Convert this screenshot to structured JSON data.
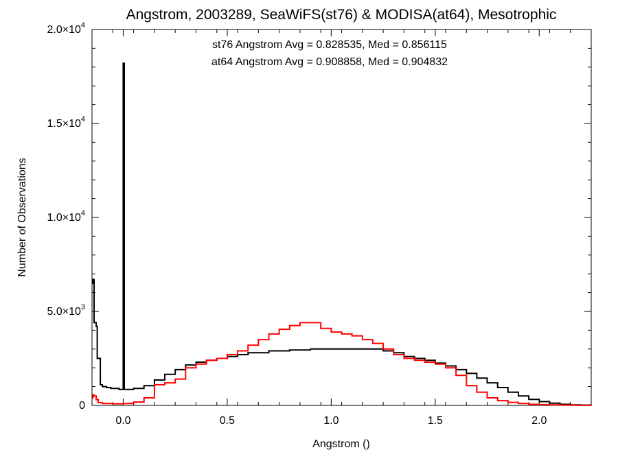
{
  "chart_data": {
    "type": "histogram",
    "title": "Angstrom, 2003289, SeaWiFS(st76) & MODISA(at64), Mesotrophic",
    "xlabel": "Angstrom ()",
    "ylabel": "Number of Observations",
    "xlim": [
      -0.15,
      2.25
    ],
    "ylim": [
      0,
      20000
    ],
    "grid": false,
    "x_ticks": [
      {
        "value": 0.0,
        "label": "0.0"
      },
      {
        "value": 0.5,
        "label": "0.5"
      },
      {
        "value": 1.0,
        "label": "1.0"
      },
      {
        "value": 1.5,
        "label": "1.5"
      },
      {
        "value": 2.0,
        "label": "2.0"
      }
    ],
    "y_ticks": [
      {
        "value": 0,
        "mantissa": "0",
        "exp": ""
      },
      {
        "value": 5000,
        "mantissa": "5.0×10",
        "exp": "3"
      },
      {
        "value": 10000,
        "mantissa": "1.0×10",
        "exp": "4"
      },
      {
        "value": 15000,
        "mantissa": "1.5×10",
        "exp": "4"
      },
      {
        "value": 20000,
        "mantissa": "2.0×10",
        "exp": "4"
      }
    ],
    "series": [
      {
        "name": "st76",
        "color": "#000000",
        "annotation": "st76 Angstrom Avg = 0.828535, Med = 0.856115",
        "points": [
          [
            -0.15,
            6500
          ],
          [
            -0.145,
            6700
          ],
          [
            -0.14,
            4400
          ],
          [
            -0.135,
            4400
          ],
          [
            -0.13,
            4200
          ],
          [
            -0.125,
            2500
          ],
          [
            -0.12,
            2500
          ],
          [
            -0.11,
            1100
          ],
          [
            -0.1,
            1000
          ],
          [
            -0.08,
            950
          ],
          [
            -0.06,
            900
          ],
          [
            -0.04,
            900
          ],
          [
            -0.02,
            850
          ],
          [
            -0.005,
            850
          ],
          [
            0.0,
            18200
          ],
          [
            0.005,
            850
          ],
          [
            0.05,
            900
          ],
          [
            0.1,
            1050
          ],
          [
            0.15,
            1350
          ],
          [
            0.2,
            1650
          ],
          [
            0.25,
            1900
          ],
          [
            0.3,
            2150
          ],
          [
            0.35,
            2300
          ],
          [
            0.4,
            2400
          ],
          [
            0.45,
            2500
          ],
          [
            0.5,
            2600
          ],
          [
            0.55,
            2700
          ],
          [
            0.6,
            2800
          ],
          [
            0.7,
            2900
          ],
          [
            0.8,
            2950
          ],
          [
            0.9,
            3000
          ],
          [
            1.0,
            3000
          ],
          [
            1.1,
            3000
          ],
          [
            1.2,
            3000
          ],
          [
            1.25,
            2900
          ],
          [
            1.3,
            2800
          ],
          [
            1.35,
            2600
          ],
          [
            1.4,
            2500
          ],
          [
            1.45,
            2400
          ],
          [
            1.5,
            2250
          ],
          [
            1.55,
            2100
          ],
          [
            1.6,
            1900
          ],
          [
            1.65,
            1700
          ],
          [
            1.7,
            1450
          ],
          [
            1.75,
            1200
          ],
          [
            1.8,
            950
          ],
          [
            1.85,
            700
          ],
          [
            1.9,
            500
          ],
          [
            1.95,
            320
          ],
          [
            2.0,
            200
          ],
          [
            2.05,
            120
          ],
          [
            2.1,
            60
          ],
          [
            2.15,
            30
          ],
          [
            2.2,
            15
          ],
          [
            2.25,
            5
          ]
        ]
      },
      {
        "name": "at64",
        "color": "#ff0000",
        "annotation": "at64 Angstrom Avg = 0.908858, Med = 0.904832",
        "points": [
          [
            -0.15,
            400
          ],
          [
            -0.145,
            550
          ],
          [
            -0.14,
            500
          ],
          [
            -0.13,
            300
          ],
          [
            -0.12,
            150
          ],
          [
            -0.1,
            100
          ],
          [
            -0.05,
            80
          ],
          [
            0.0,
            100
          ],
          [
            0.05,
            180
          ],
          [
            0.1,
            400
          ],
          [
            0.15,
            1100
          ],
          [
            0.2,
            1200
          ],
          [
            0.25,
            1400
          ],
          [
            0.3,
            2000
          ],
          [
            0.35,
            2200
          ],
          [
            0.4,
            2400
          ],
          [
            0.45,
            2500
          ],
          [
            0.5,
            2700
          ],
          [
            0.55,
            2900
          ],
          [
            0.6,
            3200
          ],
          [
            0.65,
            3500
          ],
          [
            0.7,
            3800
          ],
          [
            0.75,
            4050
          ],
          [
            0.8,
            4250
          ],
          [
            0.85,
            4400
          ],
          [
            0.9,
            4400
          ],
          [
            0.95,
            4100
          ],
          [
            1.0,
            3900
          ],
          [
            1.05,
            3800
          ],
          [
            1.1,
            3700
          ],
          [
            1.15,
            3500
          ],
          [
            1.2,
            3300
          ],
          [
            1.25,
            3000
          ],
          [
            1.3,
            2700
          ],
          [
            1.35,
            2500
          ],
          [
            1.4,
            2400
          ],
          [
            1.45,
            2300
          ],
          [
            1.5,
            2200
          ],
          [
            1.55,
            2000
          ],
          [
            1.6,
            1600
          ],
          [
            1.65,
            1050
          ],
          [
            1.7,
            700
          ],
          [
            1.75,
            400
          ],
          [
            1.8,
            250
          ],
          [
            1.85,
            160
          ],
          [
            1.9,
            100
          ],
          [
            1.95,
            60
          ],
          [
            2.0,
            40
          ],
          [
            2.05,
            25
          ],
          [
            2.1,
            15
          ],
          [
            2.15,
            8
          ],
          [
            2.2,
            3
          ],
          [
            2.25,
            1
          ]
        ]
      }
    ]
  }
}
